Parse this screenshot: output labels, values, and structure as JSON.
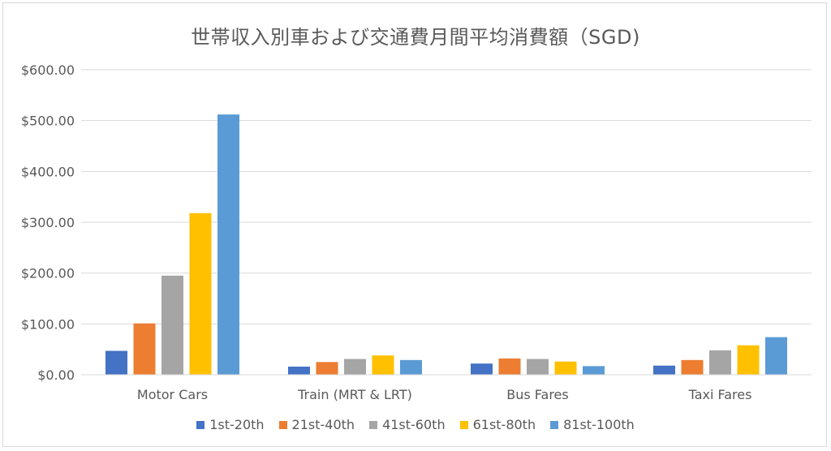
{
  "chart_data": {
    "type": "bar",
    "title": "世帯収入別車および交通費月間平均消費額（SGD)",
    "categories": [
      "Motor Cars",
      "Train (MRT & LRT)",
      "Bus Fares",
      "Taxi Fares"
    ],
    "series": [
      {
        "name": "1st-20th",
        "color": "#4472C4",
        "values": [
          47,
          16,
          22,
          18
        ]
      },
      {
        "name": "21st-40th",
        "color": "#ED7D31",
        "values": [
          101,
          25,
          32,
          29
        ]
      },
      {
        "name": "41st-60th",
        "color": "#A5A5A5",
        "values": [
          195,
          31,
          31,
          48
        ]
      },
      {
        "name": "61st-80th",
        "color": "#FFC000",
        "values": [
          318,
          38,
          26,
          58
        ]
      },
      {
        "name": "81st-100th",
        "color": "#5B9BD5",
        "values": [
          512,
          29,
          17,
          74
        ]
      }
    ],
    "ylim": [
      0,
      600
    ],
    "yticks": [
      "$0.00",
      "$100.00",
      "$200.00",
      "$300.00",
      "$400.00",
      "$500.00",
      "$600.00"
    ],
    "grid": true,
    "legend_position": "bottom"
  }
}
